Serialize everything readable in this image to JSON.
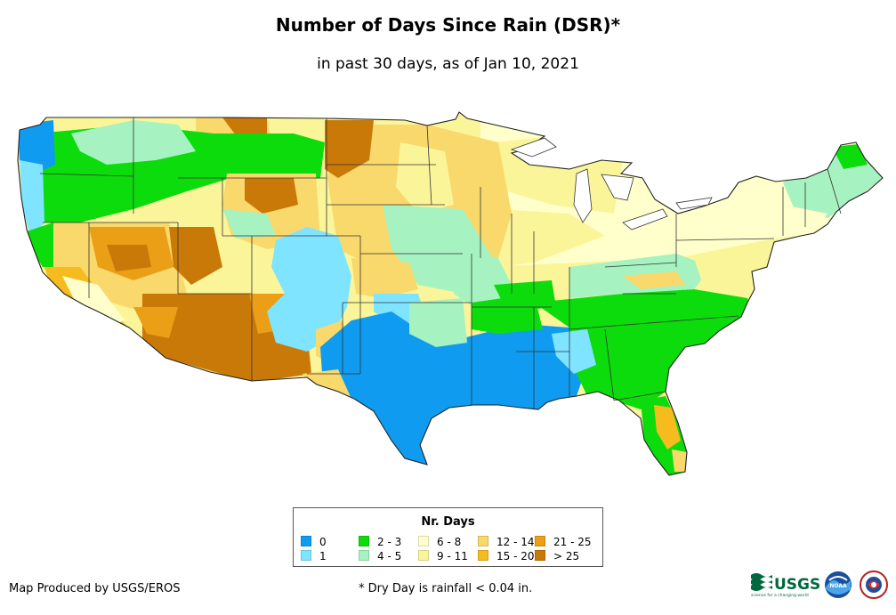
{
  "title": "Number of Days Since Rain (DSR)*",
  "subtitle": "in past 30 days, as of Jan 10, 2021",
  "legend": {
    "title": "Nr. Days",
    "items": [
      {
        "label": "0",
        "color": "#0f9cf0"
      },
      {
        "label": "1",
        "color": "#7fe4ff"
      },
      {
        "label": "2 - 3",
        "color": "#0cdc0c"
      },
      {
        "label": "4 - 5",
        "color": "#a6f2c0"
      },
      {
        "label": "6 - 8",
        "color": "#ffffcc"
      },
      {
        "label": "9 - 11",
        "color": "#fbf59a"
      },
      {
        "label": "12 - 14",
        "color": "#f9d86c"
      },
      {
        "label": "15 - 20",
        "color": "#f6bb1e"
      },
      {
        "label": "21 - 25",
        "color": "#ea9f16"
      },
      {
        "label": "> 25",
        "color": "#c97908"
      }
    ]
  },
  "credit": "Map Produced by USGS/EROS",
  "footnote": "* Dry Day is rainfall < 0.04 in.",
  "logos": {
    "usgs": "USGS",
    "usgs_tagline": "science for a changing world",
    "noaa": "NOAA"
  },
  "icons": [
    "usgs-logo-icon",
    "noaa-logo-icon",
    "nws-logo-icon"
  ]
}
